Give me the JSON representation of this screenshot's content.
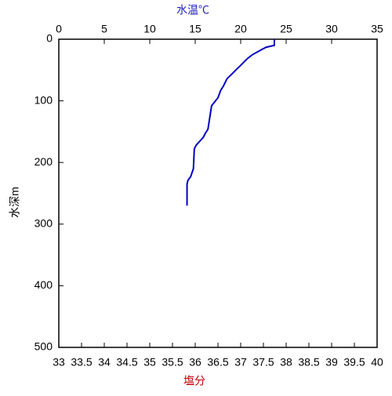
{
  "chart_data": {
    "type": "line",
    "x_label": "水温℃",
    "x2_label": "塩分",
    "y_label": "水深m",
    "xlim": [
      0,
      35
    ],
    "xticks": [
      0,
      5,
      10,
      15,
      20,
      25,
      30,
      35
    ],
    "x2lim": [
      33,
      40
    ],
    "x2ticks": [
      33,
      33.5,
      34,
      34.5,
      35,
      35.5,
      36,
      36.5,
      37,
      37.5,
      38,
      38.5,
      39,
      39.5,
      40
    ],
    "ylim": [
      0,
      500
    ],
    "yticks": [
      0,
      100,
      200,
      300,
      400,
      500
    ],
    "y_inverted": true,
    "series": [
      {
        "name": "水温",
        "color": "#0000c0",
        "x": [
          23.7,
          23.7,
          22.8,
          22.4,
          21.3,
          20.7,
          20.1,
          19.4,
          19.0,
          18.5,
          18.1,
          17.8,
          17.5,
          16.8,
          16.6,
          16.4,
          16.1,
          15.9,
          15.1,
          14.9,
          14.8,
          14.5,
          14.2,
          14.1,
          14.1
        ],
        "values": [
          0,
          10,
          13,
          16,
          25,
          32,
          41,
          51,
          57,
          64,
          76,
          83,
          95,
          108,
          127,
          146,
          153,
          159,
          172,
          178,
          210,
          223,
          229,
          235,
          270
        ]
      }
    ]
  }
}
